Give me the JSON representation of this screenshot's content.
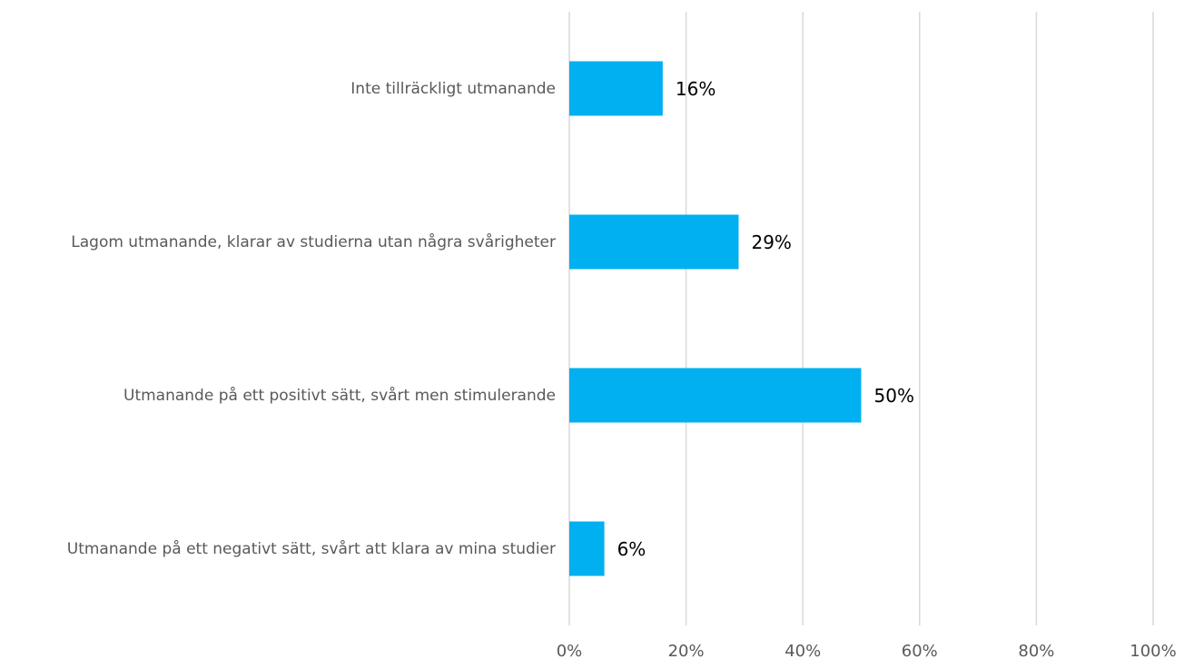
{
  "chart_data": {
    "type": "bar",
    "orientation": "horizontal",
    "categories": [
      "Inte tillräckligt utmanande",
      "Lagom utmanande, klarar av studierna utan några svårigheter",
      "Utmanande på ett positivt sätt, svårt men stimulerande",
      "Utmanande på ett negativt sätt, svårt att klara av mina studier"
    ],
    "values": [
      16,
      29,
      50,
      6
    ],
    "value_labels": [
      "16%",
      "29%",
      "50%",
      "6%"
    ],
    "color": "#00b0f0",
    "xlim": [
      0,
      100
    ],
    "xticks": [
      {
        "value": 0,
        "label": "0%"
      },
      {
        "value": 20,
        "label": "20%"
      },
      {
        "value": 40,
        "label": "40%"
      },
      {
        "value": 60,
        "label": "60%"
      },
      {
        "value": 80,
        "label": "80%"
      },
      {
        "value": 100,
        "label": "100%"
      }
    ],
    "grid": true
  }
}
